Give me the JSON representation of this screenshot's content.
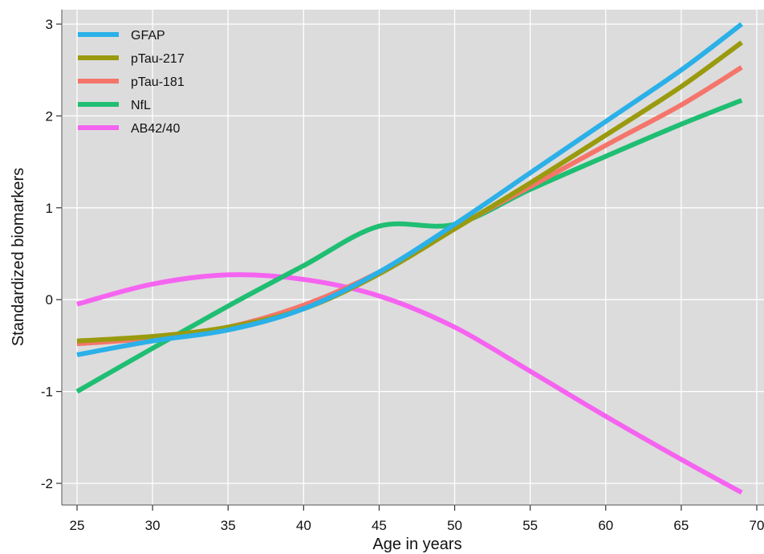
{
  "chart_data": {
    "type": "line",
    "title": "",
    "xlabel": "Age in years",
    "ylabel": "Standardized biomarkers",
    "xlim": [
      23.8,
      70
    ],
    "ylim": [
      -2.25,
      3.1
    ],
    "x_ticks": [
      25,
      30,
      35,
      40,
      45,
      50,
      55,
      60,
      65,
      70
    ],
    "y_ticks": [
      -2,
      -1,
      0,
      1,
      2,
      3
    ],
    "grid": true,
    "background": "#dcdcdc",
    "grid_color": "#ffffff",
    "legend_position": "top-left",
    "x": [
      25,
      30,
      35,
      40,
      45,
      50,
      55,
      60,
      65,
      69
    ],
    "series": [
      {
        "name": "GFAP",
        "color": "#2bb0e8",
        "values": [
          -0.6,
          -0.45,
          -0.33,
          -0.1,
          0.3,
          0.82,
          1.38,
          1.94,
          2.5,
          3.0
        ]
      },
      {
        "name": "pTau-217",
        "color": "#9a9a0f",
        "values": [
          -0.45,
          -0.4,
          -0.3,
          -0.1,
          0.28,
          0.77,
          1.27,
          1.79,
          2.32,
          2.8
        ]
      },
      {
        "name": "pTau-181",
        "color": "#f5756b",
        "values": [
          -0.48,
          -0.42,
          -0.3,
          -0.06,
          0.3,
          0.78,
          1.23,
          1.68,
          2.12,
          2.53
        ]
      },
      {
        "name": "NfL",
        "color": "#1fbe72",
        "values": [
          -1.0,
          -0.53,
          -0.07,
          0.37,
          0.8,
          0.82,
          1.2,
          1.56,
          1.91,
          2.17
        ]
      },
      {
        "name": "AB42/40",
        "color": "#f564f0",
        "values": [
          -0.05,
          0.17,
          0.27,
          0.22,
          0.04,
          -0.3,
          -0.78,
          -1.27,
          -1.74,
          -2.1
        ]
      }
    ]
  }
}
